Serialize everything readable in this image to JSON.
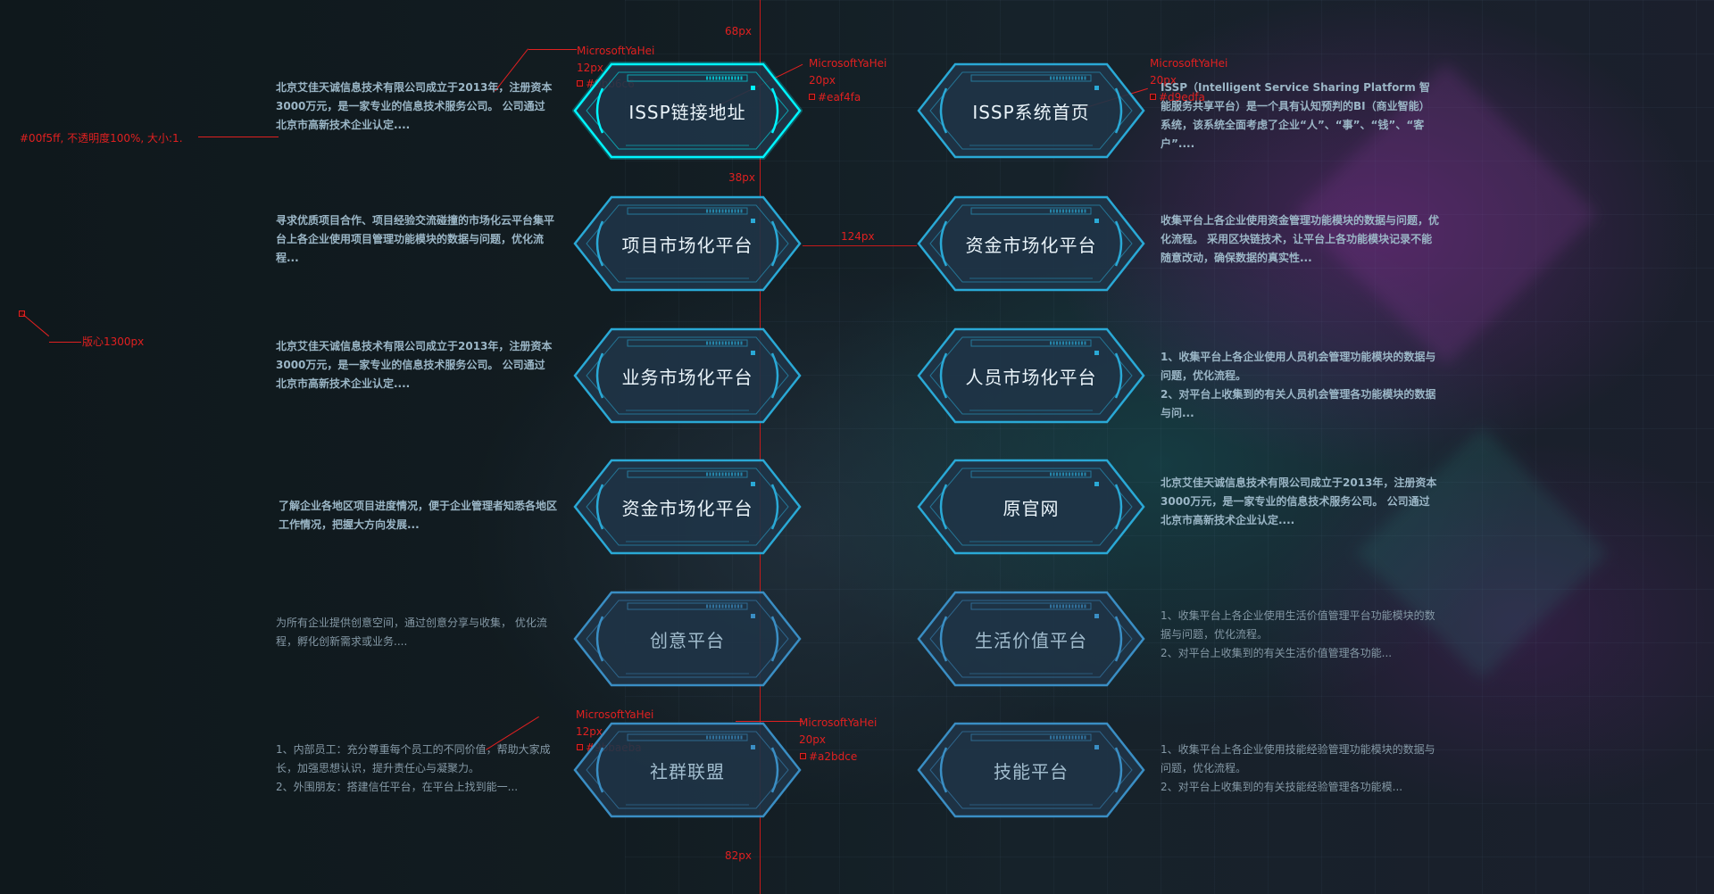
{
  "colors": {
    "guide": "#c41a1a",
    "card_fill": "#1f3447",
    "bright_border": "#00f5ff",
    "normal_border": "#2aa9d6",
    "dim_border": "#3a8ec4",
    "title_bright": "#eaf4fa",
    "title_dim": "#a2bdce",
    "desc_bright": "#9bb6c6",
    "desc_dim": "#8599a6"
  },
  "annotations": {
    "top_gap": "68px",
    "row_gap": "38px",
    "col_gap": "124px",
    "bottom_gap": "82px",
    "center": "版心1300px",
    "border_note": "#00f5ff, 不透明度100%, 大小:1.",
    "desc_font_a": "MicrosoftYaHei",
    "desc_size_a": "12px",
    "desc_color_a": "#9bb6c6",
    "title_font_a": "MicrosoftYaHei",
    "title_size_a": "20px",
    "title_color_a": "#eaf4fa",
    "title_font_b": "MicrosoftYaHei",
    "title_size_b": "20px",
    "title_color_b": "#d9edfa",
    "desc_font_c": "MicrosoftYaHei",
    "desc_size_c": "12px",
    "desc_color_c": "#9bbaeba",
    "title_font_d": "MicrosoftYaHei",
    "title_size_d": "20px",
    "title_color_d": "#a2bdce"
  },
  "cards": [
    {
      "title": "ISSP链接地址",
      "desc": "北京艾佳天诚信息技术有限公司成立于2013年，注册资本3000万元，是一家专业的信息技术服务公司。 公司通过北京市高新技术企业认定...."
    },
    {
      "title": "ISSP系统首页",
      "desc": "ISSP（Intelligent Service Sharing Platform 智能服务共享平台）是一个具有认知预判的BI（商业智能）系统，该系统全面考虑了企业“人”、“事”、“钱”、“客户”...."
    },
    {
      "title": "项目市场化平台",
      "desc": "寻求优质项目合作、项目经验交流碰撞的市场化云平台集平台上各企业使用项目管理功能模块的数据与问题，优化流程..."
    },
    {
      "title": "资金市场化平台",
      "desc": "收集平台上各企业使用资金管理功能模块的数据与问题，优化流程。 采用区块链技术，让平台上各功能模块记录不能随意改动，确保数据的真实性..."
    },
    {
      "title": "业务市场化平台",
      "desc": "北京艾佳天诚信息技术有限公司成立于2013年，注册资本3000万元，是一家专业的信息技术服务公司。 公司通过北京市高新技术企业认定...."
    },
    {
      "title": "人员市场化平台",
      "desc": "1、收集平台上各企业使用人员机会管理功能模块的数据与问题，优化流程。\n2、对平台上收集到的有关人员机会管理各功能模块的数据与问..."
    },
    {
      "title": "资金市场化平台",
      "desc": "了解企业各地区项目进度情况，便于企业管理者知悉各地区工作情况，把握大方向发展..."
    },
    {
      "title": "原官网",
      "desc": "北京艾佳天诚信息技术有限公司成立于2013年，注册资本3000万元，是一家专业的信息技术服务公司。 公司通过北京市高新技术企业认定...."
    },
    {
      "title": "创意平台",
      "desc": "为所有企业提供创意空间，通过创意分享与收集， 优化流程，孵化创新需求或业务...."
    },
    {
      "title": "生活价值平台",
      "desc": "1、收集平台上各企业使用生活价值管理平台功能模块的数据与问题，优化流程。\n2、对平台上收集到的有关生活价值管理各功能..."
    },
    {
      "title": "社群联盟",
      "desc": "1、内部员工：充分尊重每个员工的不同价值，帮助大家成长，加强思想认识，提升责任心与凝聚力。\n2、外围朋友：搭建信任平台，在平台上找到能一..."
    },
    {
      "title": "技能平台",
      "desc": "1、收集平台上各企业使用技能经验管理功能模块的数据与问题，优化流程。\n2、对平台上收集到的有关技能经验管理各功能模..."
    }
  ]
}
